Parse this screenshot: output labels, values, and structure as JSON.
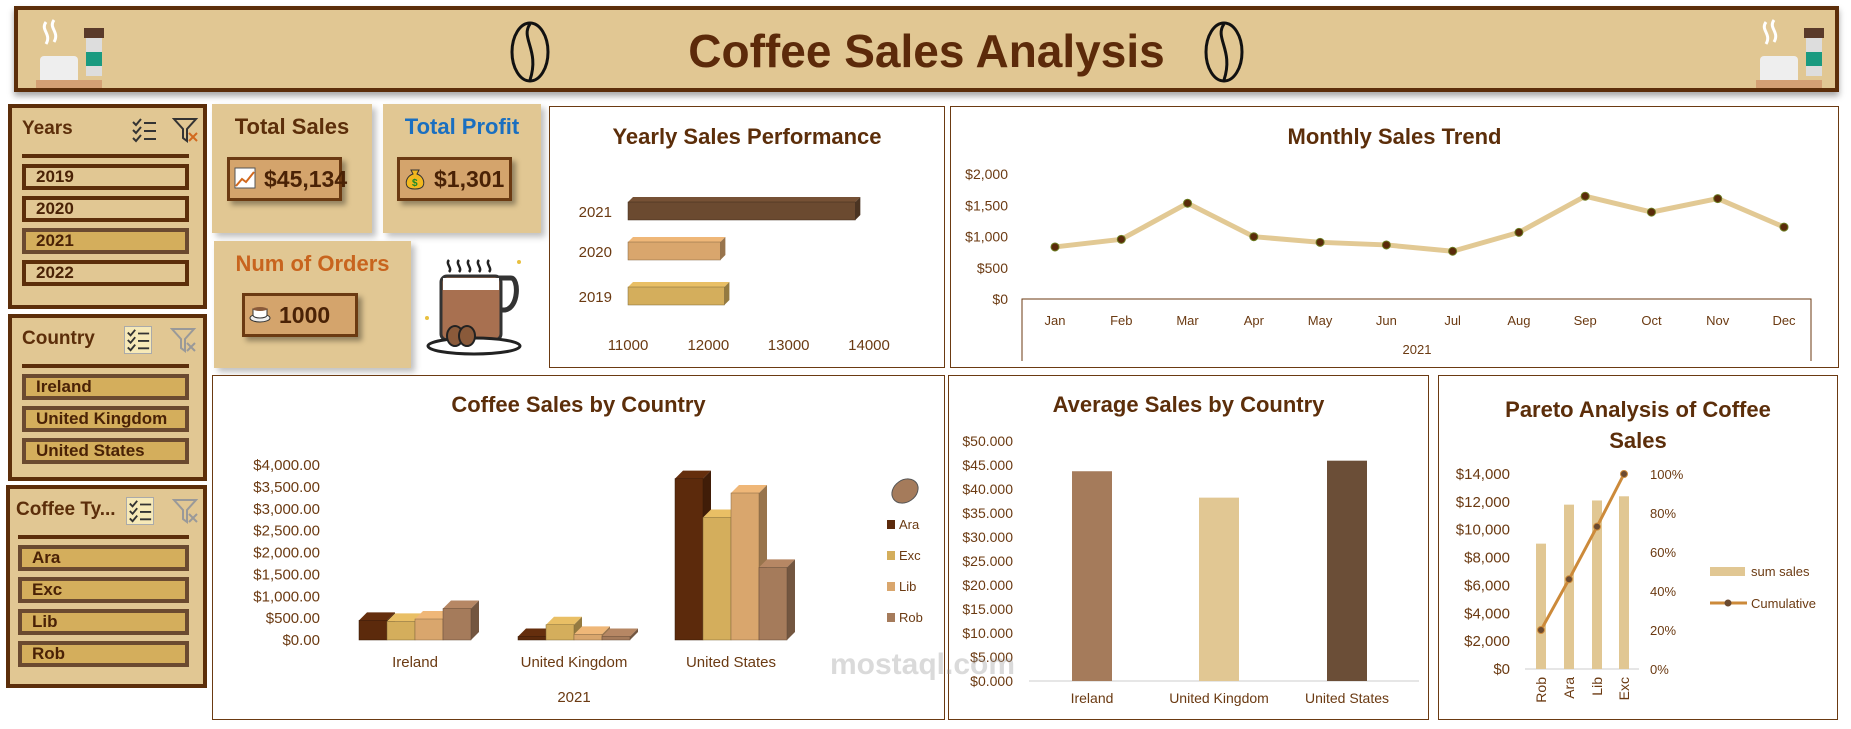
{
  "header": {
    "title": "Coffee Sales Analysis"
  },
  "slicers": {
    "years": {
      "title": "Years",
      "items": [
        "2019",
        "2020",
        "2021",
        "2022"
      ],
      "selected": "2021"
    },
    "country": {
      "title": "Country",
      "items": [
        "Ireland",
        "United Kingdom",
        "United States"
      ]
    },
    "coffee_type": {
      "title": "Coffee Ty...",
      "items": [
        "Ara",
        "Exc",
        "Lib",
        "Rob"
      ]
    }
  },
  "kpis": {
    "total_sales": {
      "label": "Total Sales",
      "value": "$45,134"
    },
    "total_profit": {
      "label": "Total Profit",
      "value": "$1,301"
    },
    "num_orders": {
      "label": "Num of Orders",
      "value": "1000"
    }
  },
  "colors": {
    "accent": "#5c2e0a",
    "panel": "#e1c793",
    "profit_label": "#1a6fc0",
    "orders_label": "#c8641e"
  },
  "watermark": {
    "text": "mostaql.com"
  },
  "chart_data": [
    {
      "id": "yearly",
      "type": "bar",
      "orientation": "horizontal",
      "title": "Yearly Sales Performance",
      "categories": [
        "2019",
        "2020",
        "2021"
      ],
      "values": [
        12200,
        12150,
        13830
      ],
      "xlim": [
        11000,
        14000
      ],
      "xticks": [
        "11000",
        "12000",
        "13000",
        "14000"
      ]
    },
    {
      "id": "monthly",
      "type": "line",
      "title": "Monthly Sales Trend",
      "categories": [
        "Jan",
        "Feb",
        "Mar",
        "Apr",
        "May",
        "Jun",
        "Jul",
        "Aug",
        "Sep",
        "Oct",
        "Nov",
        "Dec"
      ],
      "values": [
        833,
        955,
        1533,
        997,
        907,
        865,
        764,
        1066,
        1645,
        1390,
        1607,
        1151
      ],
      "xlabel": "2021",
      "ylim": [
        0,
        2000
      ],
      "yticks": [
        "$0",
        "$500",
        "$1,000",
        "$1,500",
        "$2,000"
      ]
    },
    {
      "id": "by_country",
      "type": "bar",
      "title": "Coffee Sales by Country",
      "categories": [
        "Ireland",
        "United Kingdom",
        "United States"
      ],
      "xlabel": "2021",
      "ylim": [
        0,
        4000
      ],
      "yticks": [
        "$0.00",
        "$500.00",
        "$1,000.00",
        "$1,500.00",
        "$2,000.00",
        "$2,500.00",
        "$3,000.00",
        "$3,500.00",
        "$4,000.00"
      ],
      "legend": "right",
      "series": [
        {
          "name": "Ara",
          "values": [
            450,
            80,
            3690
          ]
        },
        {
          "name": "Exc",
          "values": [
            425,
            350,
            2800
          ]
        },
        {
          "name": "Lib",
          "values": [
            480,
            130,
            3360
          ]
        },
        {
          "name": "Rob",
          "values": [
            720,
            80,
            1660
          ]
        }
      ]
    },
    {
      "id": "avg_country",
      "type": "bar",
      "title": "Average Sales by Country",
      "categories": [
        "Ireland",
        "United Kingdom",
        "United States"
      ],
      "values": [
        43.7,
        38.2,
        45.9
      ],
      "ylim": [
        0,
        50
      ],
      "yticks": [
        "$0.000",
        "$5.000",
        "$10.000",
        "$15.000",
        "$20.000",
        "$25.000",
        "$30.000",
        "$35.000",
        "$40.000",
        "$45.000",
        "$50.000"
      ]
    },
    {
      "id": "pareto",
      "type": "bar",
      "title": "Pareto Analysis of Coffee Sales",
      "categories": [
        "Rob",
        "Ara",
        "Lib",
        "Exc"
      ],
      "ylim": [
        0,
        14000
      ],
      "y2lim": [
        0,
        100
      ],
      "yticks": [
        "$0",
        "$2,000",
        "$4,000",
        "$6,000",
        "$8,000",
        "$10,000",
        "$12,000",
        "$14,000"
      ],
      "y2ticks": [
        "0%",
        "20%",
        "40%",
        "60%",
        "80%",
        "100%"
      ],
      "legend": "right",
      "series": [
        {
          "name": "sum sales",
          "type": "bar",
          "values": [
            9000,
            11800,
            12100,
            12400
          ]
        },
        {
          "name": "Cumulative",
          "type": "line",
          "values": [
            20,
            46,
            73,
            100
          ]
        }
      ]
    }
  ]
}
